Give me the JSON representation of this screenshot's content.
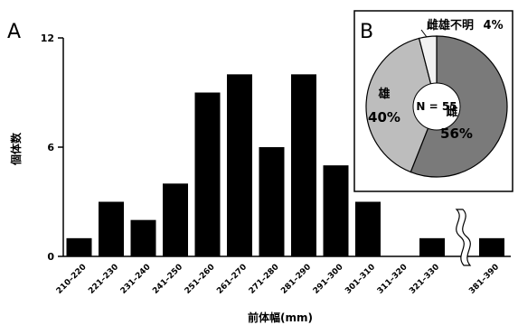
{
  "chart_data": [
    {
      "panel": "A",
      "type": "bar",
      "xlabel": "前体幅(mm)",
      "ylabel": "個体数",
      "ylim": [
        0,
        12
      ],
      "yticks": [
        "0",
        "6",
        "12"
      ],
      "axis_break": "between 321–330 and 381–390",
      "categories": [
        "210–220",
        "221–230",
        "231–240",
        "241–250",
        "251–260",
        "261–270",
        "271–280",
        "281–290",
        "291–300",
        "301–310",
        "311–320",
        "321–330",
        "381–390"
      ],
      "values": [
        1,
        3,
        2,
        4,
        9,
        10,
        6,
        10,
        5,
        3,
        0,
        1,
        1
      ],
      "bar_color": "#000000"
    },
    {
      "panel": "B",
      "type": "pie",
      "center_label": "N = 55",
      "slices": [
        {
          "label": "雌",
          "percent": "56%",
          "value": 56,
          "color": "#7a7a7a"
        },
        {
          "label": "雄",
          "percent": "40%",
          "value": 40,
          "color": "#bdbdbd"
        },
        {
          "label": "雌雄不明",
          "percent": "4%",
          "value": 4,
          "color": "#f2f2f2"
        }
      ]
    }
  ]
}
